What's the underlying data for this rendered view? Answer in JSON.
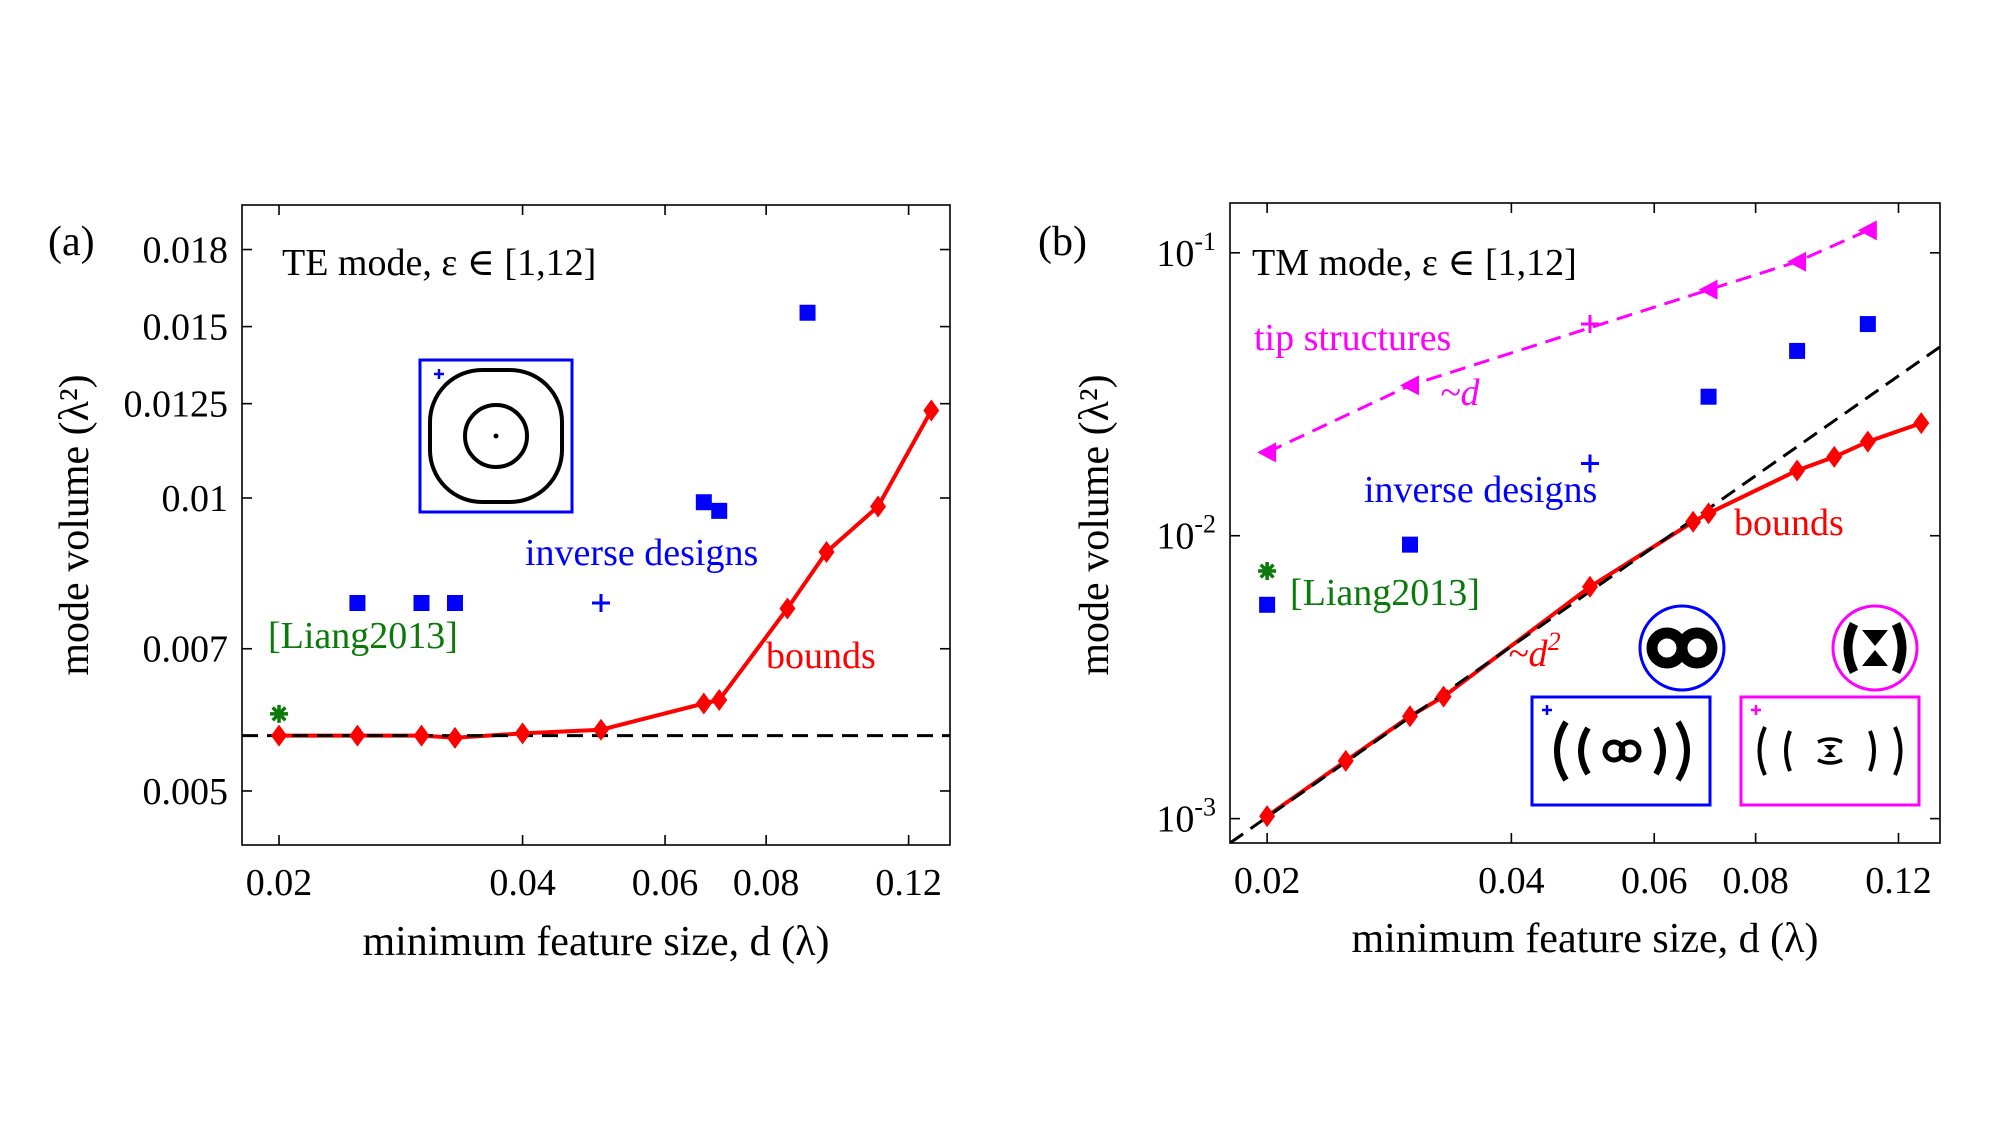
{
  "chart_data": [
    {
      "type": "scatter",
      "panel_label": "(a)",
      "title": "TE mode, ε ∈ [1,12]",
      "xlabel": "minimum feature size, d (λ)",
      "ylabel": "mode volume (λ²)",
      "xscale": "log",
      "yscale": "log",
      "xlim": [
        0.018,
        0.135
      ],
      "ylim": [
        0.0044,
        0.02
      ],
      "xticks": [
        0.02,
        0.04,
        0.06,
        0.08,
        0.12
      ],
      "xticklabels": [
        "0.02",
        "0.04",
        "0.06",
        "0.08",
        "0.12"
      ],
      "yticks": [
        0.005,
        0.007,
        0.01,
        0.0125,
        0.015,
        0.018
      ],
      "yticklabels": [
        "0.005",
        "0.007",
        "0.01",
        "0.0125",
        "0.015",
        "0.018"
      ],
      "grid": false,
      "series": [
        {
          "name": "bounds",
          "color": "#ff0000",
          "marker": "diamond",
          "line": "solid",
          "x": [
            0.02,
            0.025,
            0.03,
            0.033,
            0.04,
            0.05,
            0.067,
            0.07,
            0.085,
            0.095,
            0.11,
            0.128
          ],
          "y": [
            0.0057,
            0.0057,
            0.0057,
            0.00567,
            0.00573,
            0.00578,
            0.00615,
            0.0062,
            0.0077,
            0.0088,
            0.0098,
            0.0123
          ]
        },
        {
          "name": "inverse designs",
          "color": "#0000ff",
          "marker": "square",
          "line": "none",
          "x": [
            0.025,
            0.03,
            0.033,
            0.067,
            0.07,
            0.09
          ],
          "y": [
            0.0078,
            0.0078,
            0.0078,
            0.0099,
            0.0097,
            0.0155
          ]
        },
        {
          "name": "inverse designs (shown structure)",
          "color": "#0000ff",
          "marker": "plus",
          "line": "none",
          "x": [
            0.05
          ],
          "y": [
            0.0078
          ]
        },
        {
          "name": "[Liang2013]",
          "color": "#0a7a0a",
          "marker": "asterisk",
          "line": "none",
          "x": [
            0.02
          ],
          "y": [
            0.006
          ]
        },
        {
          "name": "",
          "color": "#000000",
          "marker": "none",
          "line": "dashed",
          "x": [
            0.018,
            0.135
          ],
          "y": [
            0.0057,
            0.0057
          ]
        }
      ],
      "annotations": [
        {
          "text": "inverse designs",
          "color": "#0000ff"
        },
        {
          "text": "[Liang2013]",
          "color": "#0a7a0a"
        },
        {
          "text": "bounds",
          "color": "#ff0000"
        }
      ]
    },
    {
      "type": "scatter",
      "panel_label": "(b)",
      "title": "TM mode, ε ∈ [1,12]",
      "xlabel": "minimum feature size, d (λ)",
      "ylabel": "mode volume (λ²)",
      "xscale": "log",
      "yscale": "log",
      "xlim": [
        0.018,
        0.135
      ],
      "ylim": [
        0.00082,
        0.15
      ],
      "xticks": [
        0.02,
        0.04,
        0.06,
        0.08,
        0.12
      ],
      "xticklabels": [
        "0.02",
        "0.04",
        "0.06",
        "0.08",
        "0.12"
      ],
      "yticks": [
        0.001,
        0.01,
        0.1
      ],
      "yticklabels": [
        {
          "base": "10",
          "exp": "-3"
        },
        {
          "base": "10",
          "exp": "-2"
        },
        {
          "base": "10",
          "exp": "-1"
        }
      ],
      "grid": false,
      "series": [
        {
          "name": "bounds",
          "color": "#ff0000",
          "marker": "diamond",
          "line": "solid",
          "x": [
            0.02,
            0.025,
            0.03,
            0.033,
            0.05,
            0.067,
            0.07,
            0.09,
            0.1,
            0.11,
            0.128
          ],
          "y": [
            0.00102,
            0.0016,
            0.0023,
            0.0027,
            0.0066,
            0.0112,
            0.012,
            0.017,
            0.019,
            0.0215,
            0.025
          ]
        },
        {
          "name": "inverse designs",
          "color": "#0000ff",
          "marker": "square",
          "line": "none",
          "x": [
            0.03,
            0.07,
            0.09,
            0.11
          ],
          "y": [
            0.0093,
            0.031,
            0.045,
            0.056
          ]
        },
        {
          "name": "inverse designs (shown structure)",
          "color": "#0000ff",
          "marker": "plus",
          "line": "none",
          "x": [
            0.05
          ],
          "y": [
            0.018
          ]
        },
        {
          "name": "[Liang2013]",
          "color": "#0a7a0a",
          "marker": "asterisk",
          "line": "none",
          "x": [
            0.02
          ],
          "y": [
            0.0075
          ]
        },
        {
          "name": "[Liang2013]",
          "color": "#0000ff",
          "marker": "square",
          "line": "none",
          "x": [
            0.02
          ],
          "y": [
            0.0057
          ]
        },
        {
          "name": "tip structures",
          "color": "#ff00ff",
          "marker": "triangle-left",
          "line": "dashed",
          "x": [
            0.02,
            0.03,
            0.07,
            0.09,
            0.11
          ],
          "y": [
            0.0197,
            0.034,
            0.074,
            0.093,
            0.12
          ]
        },
        {
          "name": "tip structures (shown structure)",
          "color": "#ff00ff",
          "marker": "plus",
          "line": "none",
          "x": [
            0.05
          ],
          "y": [
            0.056
          ]
        },
        {
          "name": "",
          "color": "#000000",
          "marker": "none",
          "line": "dashed",
          "x": [
            0.018,
            0.135
          ],
          "y": [
            0.00082,
            0.0465
          ]
        }
      ],
      "annotations": [
        {
          "text": "tip structures",
          "color": "#ff00ff"
        },
        {
          "text": "~d",
          "color": "#ff00ff"
        },
        {
          "text": "inverse designs",
          "color": "#0000ff"
        },
        {
          "text": "[Liang2013]",
          "color": "#0a7a0a"
        },
        {
          "text": "bounds",
          "color": "#ff0000"
        },
        {
          "text": "~d",
          "sup": "2",
          "color": "#ff0000"
        }
      ]
    }
  ]
}
